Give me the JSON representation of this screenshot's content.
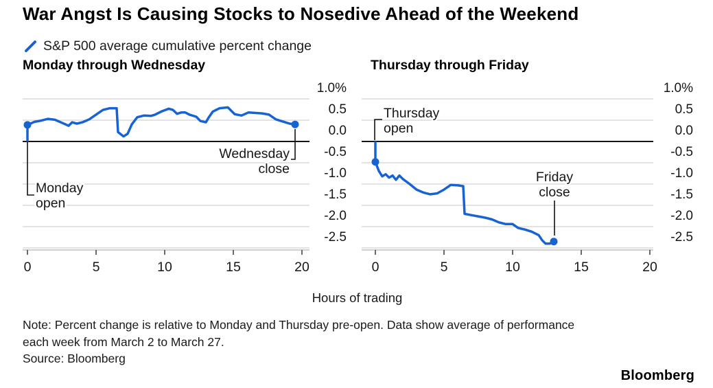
{
  "title": "War Angst Is Causing Stocks to Nosedive Ahead of the Weekend",
  "legend": {
    "marker_icon": "blue-slash",
    "label": "S&P 500 average cumulative percent change"
  },
  "axis": {
    "x_title": "Hours of trading"
  },
  "footer": {
    "note": "Note: Percent change is relative to Monday and Thursday pre-open. Data show average of performance\neach week from March 2 to March 27.",
    "source": "Source: Bloomberg",
    "brand": "Bloomberg"
  },
  "colors": {
    "line": "#1763d2",
    "grid": "#c7c7c7",
    "zero_line": "#141414",
    "axis": "#b3b3b3",
    "tick": "#444444"
  },
  "chart_data": [
    {
      "type": "line",
      "title": "Monday through Wednesday",
      "x_range": [
        0,
        20
      ],
      "y_range": [
        -2.75,
        1.0
      ],
      "xticks": [
        0,
        5,
        10,
        15,
        20
      ],
      "xtick_labels": [
        "0",
        "5",
        "10",
        "15",
        "20"
      ],
      "yticks": [
        1.0,
        0.5,
        0.0,
        -0.5,
        -1.0,
        -1.5,
        -2.0,
        -2.5
      ],
      "ytick_labels": [
        "1.0%",
        "0.5",
        "0.0",
        "-0.5",
        "-1.0",
        "-1.5",
        "-2.0",
        "-2.5"
      ],
      "grid": true,
      "pre_open_baseline": 0.0,
      "series": [
        {
          "name": "S&P 500 average cumulative percent change",
          "x": [
            0,
            0.5,
            1,
            1.5,
            2,
            2.5,
            3,
            3.25,
            3.6,
            4,
            4.5,
            5,
            5.5,
            6,
            6.5,
            6.6,
            7,
            7.3,
            7.6,
            8,
            8.5,
            9,
            9.3,
            9.8,
            10.3,
            10.6,
            10.9,
            11.2,
            11.5,
            11.8,
            12.3,
            12.6,
            13,
            13.2,
            13.5,
            14,
            14.6,
            15.1,
            15.6,
            16.1,
            17.1,
            17.6,
            18.1,
            18.6,
            19.1,
            19.5
          ],
          "y": [
            0.39,
            0.46,
            0.49,
            0.53,
            0.51,
            0.44,
            0.37,
            0.45,
            0.42,
            0.45,
            0.52,
            0.63,
            0.74,
            0.78,
            0.78,
            0.22,
            0.12,
            0.18,
            0.4,
            0.57,
            0.61,
            0.6,
            0.63,
            0.71,
            0.77,
            0.74,
            0.65,
            0.68,
            0.68,
            0.63,
            0.58,
            0.48,
            0.45,
            0.56,
            0.7,
            0.78,
            0.8,
            0.64,
            0.61,
            0.68,
            0.66,
            0.63,
            0.52,
            0.47,
            0.42,
            0.4
          ]
        }
      ],
      "annotations": [
        {
          "lines": [
            "Monday",
            "open"
          ],
          "x": 0,
          "y": 0.39
        },
        {
          "lines": [
            "Wednesday",
            "close"
          ],
          "x": 19.5,
          "y": 0.4
        }
      ]
    },
    {
      "type": "line",
      "title": "Thursday through Friday",
      "x_range": [
        0,
        20
      ],
      "y_range": [
        -2.75,
        1.0
      ],
      "xticks": [
        0,
        5,
        10,
        15,
        20
      ],
      "xtick_labels": [
        "0",
        "5",
        "10",
        "15",
        "20"
      ],
      "yticks": [
        1.0,
        0.5,
        0.0,
        -0.5,
        -1.0,
        -1.5,
        -2.0,
        -2.5
      ],
      "ytick_labels": [
        "1.0%",
        "0.5",
        "0.0",
        "-0.5",
        "-1.0",
        "-1.5",
        "-2.0",
        "-2.5"
      ],
      "grid": true,
      "pre_open_baseline": 0.0,
      "series": [
        {
          "name": "S&P 500 average cumulative percent change",
          "x": [
            0,
            0.25,
            0.5,
            0.75,
            1,
            1.25,
            1.5,
            1.75,
            2,
            2.5,
            3,
            3.5,
            4,
            4.5,
            5,
            5.5,
            6,
            6.4,
            6.5,
            7,
            7.5,
            8,
            8.5,
            9,
            9.5,
            10,
            10.4,
            10.9,
            11.4,
            11.9,
            12.15,
            12.4,
            12.7,
            13
          ],
          "y": [
            -0.48,
            -0.69,
            -0.82,
            -0.77,
            -0.85,
            -0.8,
            -0.9,
            -0.8,
            -0.88,
            -1.0,
            -1.13,
            -1.2,
            -1.24,
            -1.22,
            -1.13,
            -1.02,
            -1.03,
            -1.05,
            -1.7,
            -1.73,
            -1.76,
            -1.79,
            -1.83,
            -1.9,
            -1.94,
            -1.94,
            -2.03,
            -2.07,
            -2.12,
            -2.2,
            -2.32,
            -2.4,
            -2.4,
            -2.35
          ]
        }
      ],
      "annotations": [
        {
          "lines": [
            "Thursday",
            "open"
          ],
          "x": 0,
          "y": -0.48
        },
        {
          "lines": [
            "Friday",
            "close"
          ],
          "x": 13,
          "y": -2.35
        }
      ]
    }
  ]
}
